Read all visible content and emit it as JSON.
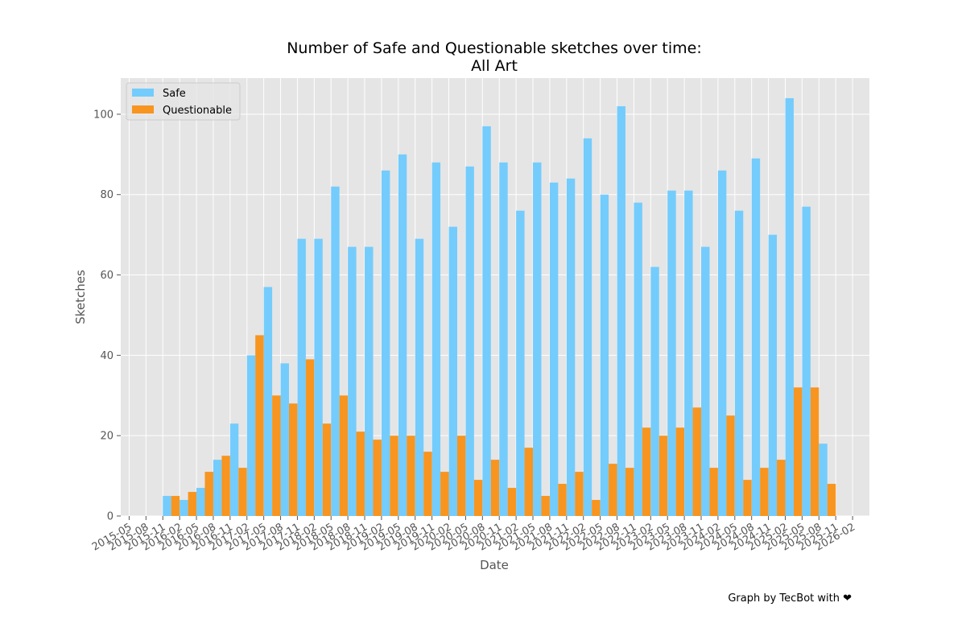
{
  "chart_data": {
    "type": "bar",
    "title": "Number of Safe and Questionable sketches over time:",
    "subtitle": "All Art",
    "xlabel": "Date",
    "ylabel": "Sketches",
    "ylim": [
      0,
      109
    ],
    "yticks": [
      0,
      20,
      40,
      60,
      80,
      100
    ],
    "grid": true,
    "legend_position": "top-left",
    "x_tick_labels": [
      "2015-05",
      "2015-08",
      "2015-11",
      "2016-02",
      "2016-05",
      "2016-08",
      "2016-11",
      "2017-02",
      "2017-05",
      "2017-08",
      "2017-11",
      "2018-02",
      "2018-05",
      "2018-08",
      "2018-11",
      "2019-02",
      "2019-05",
      "2019-08",
      "2019-11",
      "2020-02",
      "2020-05",
      "2020-08",
      "2020-11",
      "2021-02",
      "2021-05",
      "2021-08",
      "2021-11",
      "2022-02",
      "2022-05",
      "2022-08",
      "2022-11",
      "2023-02",
      "2023-05",
      "2023-08",
      "2023-11",
      "2024-02",
      "2024-05",
      "2024-08",
      "2024-11",
      "2025-02",
      "2025-05",
      "2025-08",
      "2025-11",
      "2026-02"
    ],
    "categories": [
      "2015-11",
      "2016-02",
      "2016-05",
      "2016-08",
      "2016-11",
      "2017-02",
      "2017-05",
      "2017-08",
      "2017-11",
      "2018-02",
      "2018-05",
      "2018-08",
      "2018-11",
      "2019-02",
      "2019-05",
      "2019-08",
      "2019-11",
      "2020-02",
      "2020-05",
      "2020-08",
      "2020-11",
      "2021-02",
      "2021-05",
      "2021-08",
      "2021-11",
      "2022-02",
      "2022-05",
      "2022-08",
      "2022-11",
      "2023-02",
      "2023-05",
      "2023-08",
      "2023-11",
      "2024-02",
      "2024-05",
      "2024-08",
      "2024-11",
      "2025-02",
      "2025-05",
      "2025-08"
    ],
    "series": [
      {
        "name": "Safe",
        "color": "#74ccfc",
        "values": [
          5,
          4,
          7,
          14,
          23,
          40,
          57,
          38,
          69,
          69,
          82,
          67,
          67,
          86,
          90,
          69,
          88,
          72,
          87,
          97,
          88,
          76,
          88,
          83,
          84,
          94,
          80,
          102,
          78,
          62,
          81,
          81,
          67,
          86,
          76,
          89,
          70,
          104,
          77,
          18
        ]
      },
      {
        "name": "Questionable",
        "color": "#f79520",
        "values": [
          5,
          6,
          11,
          15,
          12,
          45,
          30,
          28,
          39,
          23,
          30,
          21,
          19,
          20,
          20,
          16,
          11,
          20,
          9,
          14,
          7,
          17,
          5,
          8,
          11,
          4,
          13,
          12,
          22,
          20,
          22,
          27,
          12,
          25,
          9,
          12,
          14,
          32,
          32,
          8
        ]
      }
    ],
    "plot_background": "#e5e5e5",
    "grid_color": "#ffffff"
  },
  "credit": "Graph by TecBot with ❤"
}
